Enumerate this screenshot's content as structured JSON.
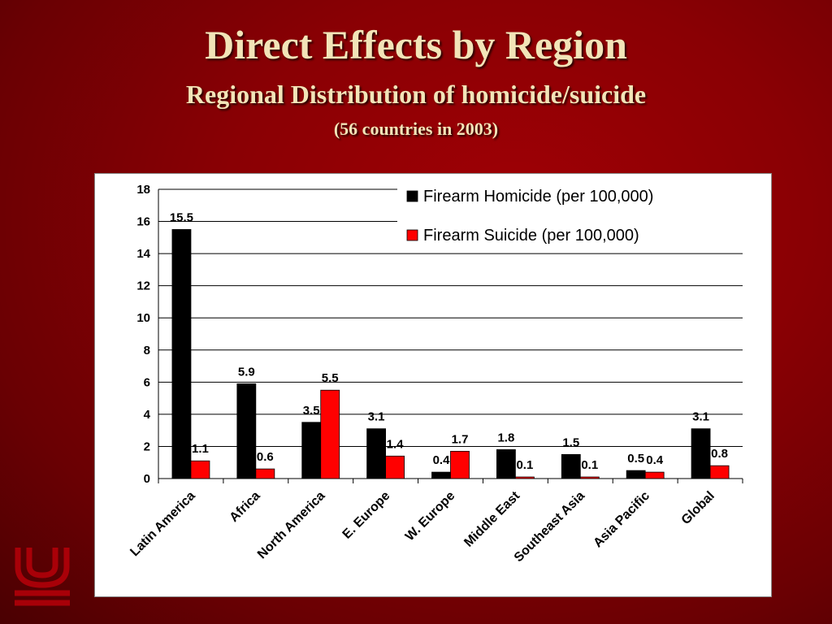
{
  "slide": {
    "title": "Direct Effects by Region",
    "subtitle": "Regional Distribution of  homicide/suicide",
    "note": "(56 countries in 2003)"
  },
  "chart_data": {
    "type": "bar",
    "categories": [
      "Latin America",
      "Africa",
      "North America",
      "E. Europe",
      "W. Europe",
      "Middle East",
      "Southeast Asia",
      "Asia Pacific",
      "Global"
    ],
    "series": [
      {
        "name": "Firearm Homicide (per 100,000)",
        "color": "#000000",
        "values": [
          15.5,
          5.9,
          3.5,
          3.1,
          0.4,
          1.8,
          1.5,
          0.5,
          3.1
        ]
      },
      {
        "name": "Firearm Suicide (per 100,000)",
        "color": "#ff0000",
        "values": [
          1.1,
          0.6,
          5.5,
          1.4,
          1.7,
          0.1,
          0.1,
          0.4,
          0.8
        ]
      }
    ],
    "ylim": [
      0,
      18
    ],
    "yticks": [
      0,
      2,
      4,
      6,
      8,
      10,
      12,
      14,
      16,
      18
    ],
    "grid": true,
    "legend": "top-right"
  },
  "logo": {
    "icon": "institution-logo-icon",
    "color": "#c9000a"
  }
}
